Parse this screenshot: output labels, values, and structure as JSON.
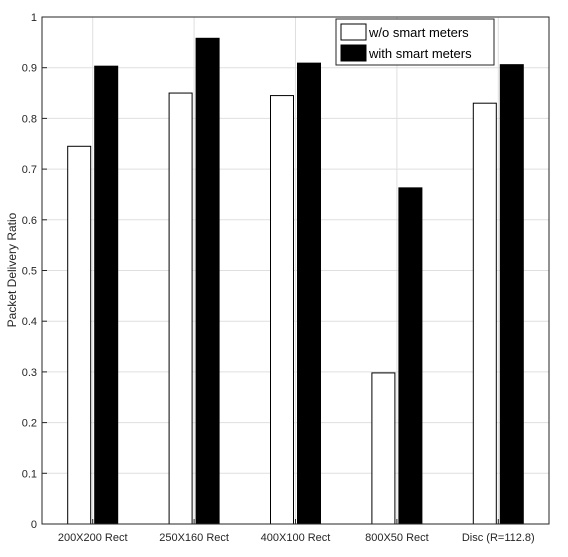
{
  "chart_data": {
    "type": "bar",
    "categories": [
      "200X200 Rect",
      "250X160 Rect",
      "400X100 Rect",
      "800X50 Rect",
      "Disc (R=112.8)"
    ],
    "series": [
      {
        "name": "w/o smart meters",
        "values": [
          0.745,
          0.85,
          0.845,
          0.298,
          0.83
        ],
        "color": "#ffffff"
      },
      {
        "name": "with smart meters",
        "values": [
          0.903,
          0.958,
          0.909,
          0.663,
          0.906
        ],
        "color": "#000000"
      }
    ],
    "title": "",
    "xlabel": "",
    "ylabel": "Packet Delivery Ratio",
    "ylim": [
      0,
      1
    ],
    "yticks": [
      "0",
      "0.1",
      "0.2",
      "0.3",
      "0.4",
      "0.5",
      "0.6",
      "0.7",
      "0.8",
      "0.9",
      "1"
    ],
    "grid": true,
    "legend": "top-right"
  }
}
